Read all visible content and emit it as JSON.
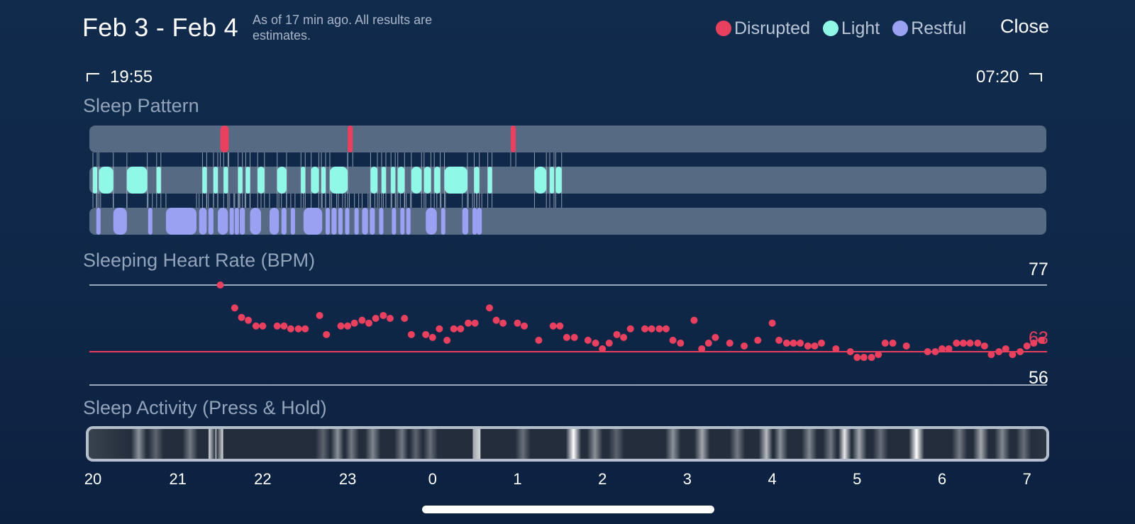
{
  "header": {
    "title": "Feb 3 - Feb 4",
    "subtitle": "As of 17 min ago. All results are estimates.",
    "close_label": "Close"
  },
  "legend": [
    {
      "label": "Disrupted",
      "color": "#e8405e"
    },
    {
      "label": "Light",
      "color": "#8ff8e6"
    },
    {
      "label": "Restful",
      "color": "#9aa0f2"
    }
  ],
  "range": {
    "start": "19:55",
    "end": "07:20"
  },
  "sleep_pattern": {
    "label": "Sleep Pattern",
    "colors": {
      "disrupted": "#e8405e",
      "light": "#8ff8e6",
      "restful": "#9aa0f2",
      "track": "#566a84"
    },
    "disrupted": [
      [
        1.5,
        1.6
      ],
      [
        3.0,
        3.06
      ],
      [
        4.92,
        4.98
      ]
    ],
    "light": [
      [
        0.0,
        0.04
      ],
      [
        0.07,
        0.24
      ],
      [
        0.4,
        0.64
      ],
      [
        0.75,
        0.8
      ],
      [
        1.29,
        1.34
      ],
      [
        1.42,
        1.47
      ],
      [
        1.54,
        1.59
      ],
      [
        1.71,
        1.76
      ],
      [
        1.8,
        1.85
      ],
      [
        1.94,
        2.02
      ],
      [
        2.17,
        2.28
      ],
      [
        2.45,
        2.49
      ],
      [
        2.57,
        2.66
      ],
      [
        2.69,
        2.73
      ],
      [
        2.79,
        3.0
      ],
      [
        3.27,
        3.35
      ],
      [
        3.4,
        3.45
      ],
      [
        3.51,
        3.55
      ],
      [
        3.59,
        3.67
      ],
      [
        3.75,
        3.87
      ],
      [
        3.9,
        3.98
      ],
      [
        4.02,
        4.09
      ],
      [
        4.14,
        4.41
      ],
      [
        4.49,
        4.55
      ],
      [
        4.65,
        4.68
      ],
      [
        5.2,
        5.34
      ],
      [
        5.38,
        5.42
      ],
      [
        5.45,
        5.52
      ]
    ],
    "restful": [
      [
        0.04,
        0.07
      ],
      [
        0.24,
        0.4
      ],
      [
        0.65,
        0.68
      ],
      [
        0.86,
        1.22
      ],
      [
        1.25,
        1.34
      ],
      [
        1.36,
        1.42
      ],
      [
        1.47,
        1.59
      ],
      [
        1.61,
        1.64
      ],
      [
        1.67,
        1.71
      ],
      [
        1.73,
        1.79
      ],
      [
        1.85,
        1.98
      ],
      [
        2.08,
        2.19
      ],
      [
        2.22,
        2.28
      ],
      [
        2.33,
        2.36
      ],
      [
        2.48,
        2.7
      ],
      [
        2.74,
        2.78
      ],
      [
        2.81,
        2.87
      ],
      [
        2.89,
        2.92
      ],
      [
        2.97,
        3.0
      ],
      [
        3.08,
        3.1
      ],
      [
        3.17,
        3.24
      ],
      [
        3.26,
        3.32
      ],
      [
        3.37,
        3.4
      ],
      [
        3.52,
        3.56
      ],
      [
        3.62,
        3.66
      ],
      [
        3.69,
        3.73
      ],
      [
        3.92,
        4.05
      ],
      [
        4.1,
        4.14
      ],
      [
        4.35,
        4.42
      ],
      [
        4.47,
        4.5
      ],
      [
        4.52,
        4.58
      ]
    ]
  },
  "heart_rate": {
    "label": "Sleeping Heart Rate (BPM)",
    "max_label": "77",
    "avg_label": "63",
    "min_label": "56",
    "color": "#e8405e",
    "max": 77,
    "avg": 63,
    "min": 56,
    "points": [
      [
        21.5,
        77
      ],
      [
        21.67,
        72.2
      ],
      [
        21.75,
        70.2
      ],
      [
        21.83,
        69.6
      ],
      [
        21.92,
        68.4
      ],
      [
        22.0,
        68.4
      ],
      [
        22.17,
        68.4
      ],
      [
        22.25,
        68.4
      ],
      [
        22.33,
        67.8
      ],
      [
        22.42,
        67.8
      ],
      [
        22.5,
        67.8
      ],
      [
        22.67,
        70.6
      ],
      [
        22.75,
        66.6
      ],
      [
        22.92,
        68.4
      ],
      [
        23.0,
        68.4
      ],
      [
        23.08,
        69.0
      ],
      [
        23.17,
        69.6
      ],
      [
        23.25,
        69.0
      ],
      [
        23.33,
        70.0
      ],
      [
        23.42,
        70.6
      ],
      [
        23.5,
        70.0
      ],
      [
        23.67,
        70.0
      ],
      [
        23.75,
        66.6
      ],
      [
        23.92,
        66.6
      ],
      [
        24.0,
        66.0
      ],
      [
        24.08,
        67.8
      ],
      [
        24.17,
        65.4
      ],
      [
        24.25,
        67.8
      ],
      [
        24.33,
        67.8
      ],
      [
        24.42,
        69.0
      ],
      [
        24.5,
        69.0
      ],
      [
        24.67,
        72.2
      ],
      [
        24.75,
        69.6
      ],
      [
        24.83,
        69.0
      ],
      [
        25.0,
        69.0
      ],
      [
        25.08,
        68.4
      ],
      [
        25.25,
        65.4
      ],
      [
        25.42,
        68.4
      ],
      [
        25.5,
        68.4
      ],
      [
        25.58,
        66.0
      ],
      [
        25.67,
        66.0
      ],
      [
        25.83,
        65.4
      ],
      [
        25.92,
        64.8
      ],
      [
        26.0,
        63.6
      ],
      [
        26.08,
        64.8
      ],
      [
        26.17,
        66.6
      ],
      [
        26.25,
        66.0
      ],
      [
        26.33,
        67.8
      ],
      [
        26.5,
        67.8
      ],
      [
        26.58,
        67.8
      ],
      [
        26.67,
        67.8
      ],
      [
        26.75,
        67.8
      ],
      [
        26.83,
        65.4
      ],
      [
        26.92,
        64.8
      ],
      [
        27.08,
        69.6
      ],
      [
        27.17,
        63.6
      ],
      [
        27.25,
        64.8
      ],
      [
        27.33,
        66.0
      ],
      [
        27.5,
        64.8
      ],
      [
        27.67,
        64.2
      ],
      [
        27.83,
        65.4
      ],
      [
        28.0,
        69.0
      ],
      [
        28.08,
        65.4
      ],
      [
        28.17,
        64.8
      ],
      [
        28.25,
        64.8
      ],
      [
        28.33,
        64.8
      ],
      [
        28.42,
        64.2
      ],
      [
        28.5,
        64.2
      ],
      [
        28.58,
        64.8
      ],
      [
        28.75,
        63.6
      ],
      [
        28.92,
        63.0
      ],
      [
        29.0,
        61.8
      ],
      [
        29.08,
        61.8
      ],
      [
        29.17,
        61.8
      ],
      [
        29.25,
        62.4
      ],
      [
        29.33,
        64.8
      ],
      [
        29.42,
        64.8
      ],
      [
        29.58,
        64.2
      ],
      [
        29.83,
        63.0
      ],
      [
        29.92,
        63.0
      ],
      [
        30.0,
        63.6
      ],
      [
        30.08,
        63.6
      ],
      [
        30.17,
        64.8
      ],
      [
        30.25,
        64.8
      ],
      [
        30.33,
        64.8
      ],
      [
        30.42,
        64.8
      ],
      [
        30.5,
        64.2
      ],
      [
        30.58,
        62.4
      ],
      [
        30.67,
        63.0
      ],
      [
        30.75,
        63.6
      ],
      [
        30.83,
        62.4
      ],
      [
        30.92,
        63.0
      ],
      [
        31.0,
        64.2
      ],
      [
        31.08,
        64.8
      ],
      [
        31.17,
        65.4
      ]
    ]
  },
  "activity": {
    "label": "Sleep Activity (Press & Hold)",
    "bright": [
      [
        0.06,
        0.5
      ],
      [
        0.08,
        0.3
      ],
      [
        0.12,
        0.4
      ],
      [
        21.42,
        0.8
      ],
      [
        21.5,
        1.0
      ],
      [
        21.58,
        0.8
      ],
      [
        22.75,
        0.3
      ],
      [
        22.92,
        0.5
      ],
      [
        23.08,
        0.4
      ],
      [
        23.33,
        0.45
      ],
      [
        23.67,
        0.4
      ],
      [
        23.83,
        0.3
      ],
      [
        24.0,
        0.35
      ],
      [
        24.5,
        0.6
      ],
      [
        24.58,
        0.8
      ],
      [
        25.08,
        0.35
      ],
      [
        25.67,
        1.0
      ],
      [
        25.92,
        0.5
      ],
      [
        26.17,
        0.3
      ],
      [
        26.83,
        0.5
      ],
      [
        27.17,
        0.6
      ],
      [
        27.58,
        0.4
      ],
      [
        27.92,
        0.7
      ],
      [
        28.08,
        0.5
      ],
      [
        28.42,
        0.45
      ],
      [
        28.67,
        0.4
      ],
      [
        28.83,
        0.9
      ],
      [
        29.0,
        0.6
      ],
      [
        29.25,
        0.35
      ],
      [
        29.67,
        1.0
      ],
      [
        30.17,
        0.4
      ],
      [
        30.42,
        0.6
      ],
      [
        30.67,
        0.45
      ],
      [
        30.92,
        0.35
      ]
    ]
  },
  "axis": {
    "ticks": [
      {
        "value": 20,
        "label": "20"
      },
      {
        "value": 21,
        "label": "21"
      },
      {
        "value": 22,
        "label": "22"
      },
      {
        "value": 23,
        "label": "23"
      },
      {
        "value": 24,
        "label": "0"
      },
      {
        "value": 25,
        "label": "1"
      },
      {
        "value": 26,
        "label": "2"
      },
      {
        "value": 27,
        "label": "3"
      },
      {
        "value": 28,
        "label": "4"
      },
      {
        "value": 29,
        "label": "5"
      },
      {
        "value": 30,
        "label": "6"
      },
      {
        "value": 31,
        "label": "7"
      }
    ]
  }
}
